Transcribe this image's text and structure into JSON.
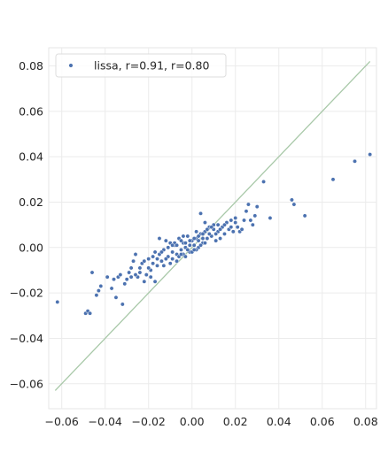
{
  "chart_data": {
    "type": "scatter",
    "title": "",
    "xlabel": "",
    "ylabel": "",
    "xlim": [
      -0.066,
      0.085
    ],
    "ylim": [
      -0.071,
      0.088
    ],
    "x_ticks": [
      -0.06,
      -0.04,
      -0.02,
      0.0,
      0.02,
      0.04,
      0.06,
      0.08
    ],
    "x_tick_labels": [
      "−0.06",
      "−0.04",
      "−0.02",
      "0.00",
      "0.02",
      "0.04",
      "0.06",
      "0.08"
    ],
    "y_ticks": [
      -0.06,
      -0.04,
      -0.02,
      0.0,
      0.02,
      0.04,
      0.06,
      0.08
    ],
    "y_tick_labels": [
      "−0.06",
      "−0.04",
      "−0.02",
      "0.00",
      "0.02",
      "0.04",
      "0.06",
      "0.08"
    ],
    "grid": true,
    "legend_position": "top-left",
    "marker_color": "#4c72b0",
    "reference_line": {
      "from": [
        -0.063,
        -0.063
      ],
      "to": [
        0.082,
        0.082
      ],
      "color": "#a8c8a8"
    },
    "series": [
      {
        "name": "lissa, r=0.91, r=0.80",
        "color": "#4c72b0",
        "points": [
          [
            -0.062,
            -0.024
          ],
          [
            -0.049,
            -0.029
          ],
          [
            -0.048,
            -0.028
          ],
          [
            -0.047,
            -0.029
          ],
          [
            -0.046,
            -0.011
          ],
          [
            -0.044,
            -0.021
          ],
          [
            -0.043,
            -0.019
          ],
          [
            -0.042,
            -0.017
          ],
          [
            -0.039,
            -0.013
          ],
          [
            -0.037,
            -0.018
          ],
          [
            -0.036,
            -0.014
          ],
          [
            -0.035,
            -0.022
          ],
          [
            -0.034,
            -0.013
          ],
          [
            -0.033,
            -0.012
          ],
          [
            -0.032,
            -0.025
          ],
          [
            -0.031,
            -0.016
          ],
          [
            -0.03,
            -0.014
          ],
          [
            -0.029,
            -0.011
          ],
          [
            -0.028,
            -0.013
          ],
          [
            -0.027,
            -0.006
          ],
          [
            -0.026,
            -0.003
          ],
          [
            -0.025,
            -0.013
          ],
          [
            -0.024,
            -0.009
          ],
          [
            -0.023,
            -0.007
          ],
          [
            -0.022,
            -0.015
          ],
          [
            -0.021,
            -0.012
          ],
          [
            -0.02,
            -0.005
          ],
          [
            -0.019,
            -0.01
          ],
          [
            -0.018,
            -0.004
          ],
          [
            -0.017,
            -0.002
          ],
          [
            -0.016,
            -0.008
          ],
          [
            -0.015,
            -0.003
          ],
          [
            -0.014,
            -0.006
          ],
          [
            -0.013,
            -0.001
          ],
          [
            -0.012,
            0.003
          ],
          [
            -0.011,
            -0.004
          ],
          [
            -0.01,
            -0.007
          ],
          [
            -0.009,
            -0.002
          ],
          [
            -0.008,
            0.001
          ],
          [
            -0.007,
            -0.003
          ],
          [
            -0.006,
            0.004
          ],
          [
            -0.005,
            -0.001
          ],
          [
            -0.004,
            0.002
          ],
          [
            -0.003,
            0.0
          ],
          [
            -0.002,
            0.005
          ],
          [
            -0.001,
            -0.002
          ],
          [
            0.0,
            0.003
          ],
          [
            0.001,
            0.001
          ],
          [
            0.002,
            0.004
          ],
          [
            0.003,
            0.0
          ],
          [
            0.004,
            0.006
          ],
          [
            0.005,
            0.002
          ],
          [
            0.006,
            0.007
          ],
          [
            0.007,
            0.004
          ],
          [
            0.008,
            0.009
          ],
          [
            0.009,
            0.005
          ],
          [
            0.01,
            0.008
          ],
          [
            0.011,
            0.003
          ],
          [
            0.012,
            0.007
          ],
          [
            0.013,
            0.004
          ],
          [
            0.014,
            0.009
          ],
          [
            0.015,
            0.006
          ],
          [
            0.016,
            0.011
          ],
          [
            0.017,
            0.008
          ],
          [
            0.018,
            0.012
          ],
          [
            0.019,
            0.007
          ],
          [
            0.02,
            0.013
          ],
          [
            0.021,
            0.009
          ],
          [
            0.022,
            0.007
          ],
          [
            0.025,
            0.016
          ],
          [
            0.026,
            0.019
          ],
          [
            0.027,
            0.012
          ],
          [
            0.028,
            0.01
          ],
          [
            0.029,
            0.014
          ],
          [
            0.03,
            0.018
          ],
          [
            0.033,
            0.029
          ],
          [
            0.036,
            0.013
          ],
          [
            0.046,
            0.021
          ],
          [
            0.047,
            0.019
          ],
          [
            0.052,
            0.014
          ],
          [
            0.065,
            0.03
          ],
          [
            0.075,
            0.038
          ],
          [
            0.082,
            0.041
          ],
          [
            -0.015,
            0.004
          ],
          [
            -0.013,
            -0.008
          ],
          [
            -0.011,
            0.0
          ],
          [
            -0.009,
            -0.005
          ],
          [
            -0.008,
            0.002
          ],
          [
            -0.007,
            0.001
          ],
          [
            -0.006,
            -0.004
          ],
          [
            -0.005,
            0.003
          ],
          [
            -0.004,
            -0.003
          ],
          [
            -0.003,
            0.002
          ],
          [
            -0.002,
            -0.001
          ],
          [
            -0.001,
            0.003
          ],
          [
            0.0,
            -0.002
          ],
          [
            0.001,
            0.004
          ],
          [
            0.002,
            -0.001
          ],
          [
            0.003,
            0.005
          ],
          [
            0.004,
            0.001
          ],
          [
            0.005,
            0.006
          ],
          [
            0.006,
            0.002
          ],
          [
            0.007,
            0.008
          ],
          [
            -0.01,
            0.002
          ],
          [
            -0.009,
            0.001
          ],
          [
            -0.007,
            -0.006
          ],
          [
            -0.005,
            -0.003
          ],
          [
            -0.003,
            -0.004
          ],
          [
            -0.001,
            0.001
          ],
          [
            0.001,
            -0.001
          ],
          [
            0.003,
            0.003
          ],
          [
            0.005,
            0.004
          ],
          [
            0.008,
            0.006
          ],
          [
            0.01,
            0.01
          ],
          [
            0.012,
            0.01
          ],
          [
            0.009,
            0.009
          ],
          [
            0.002,
            0.007
          ],
          [
            -0.004,
            0.005
          ],
          [
            -0.02,
            -0.009
          ],
          [
            -0.018,
            -0.007
          ],
          [
            -0.016,
            -0.005
          ],
          [
            -0.014,
            -0.002
          ],
          [
            -0.012,
            -0.005
          ],
          [
            -0.024,
            -0.011
          ],
          [
            -0.022,
            -0.006
          ],
          [
            -0.028,
            -0.009
          ],
          [
            -0.026,
            -0.012
          ],
          [
            -0.019,
            -0.013
          ],
          [
            0.015,
            0.01
          ],
          [
            0.018,
            0.009
          ],
          [
            0.02,
            0.011
          ],
          [
            0.023,
            0.008
          ],
          [
            0.024,
            0.012
          ],
          [
            0.004,
            0.015
          ],
          [
            0.006,
            0.011
          ],
          [
            0.011,
            0.006
          ],
          [
            -0.017,
            -0.015
          ],
          [
            0.013,
            0.008
          ]
        ]
      }
    ]
  }
}
